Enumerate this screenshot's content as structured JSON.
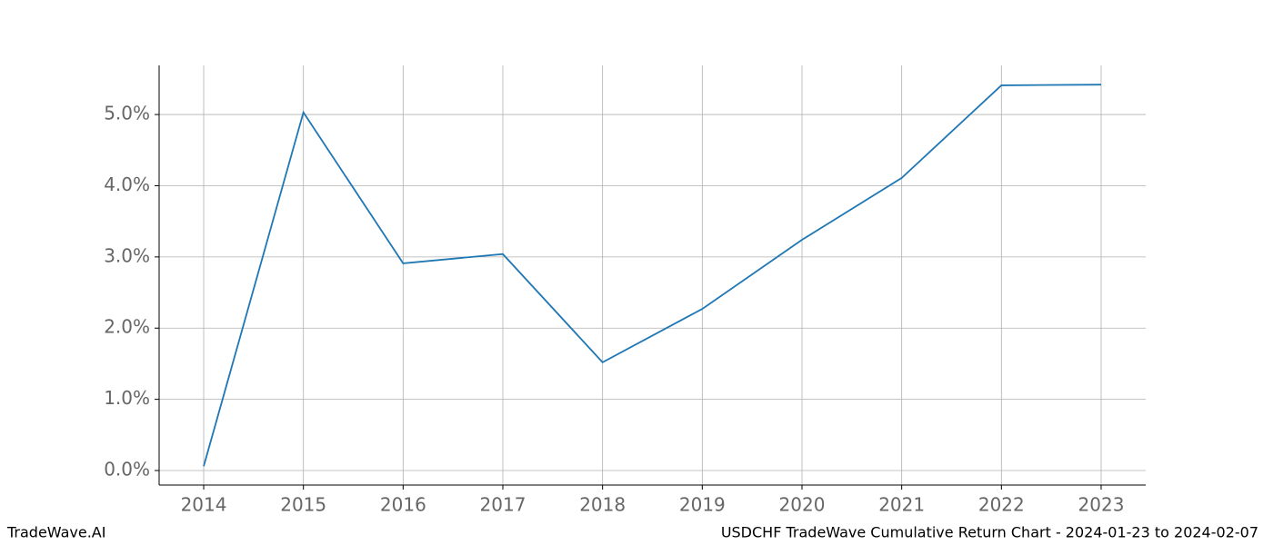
{
  "chart_data": {
    "type": "line",
    "title": "USDCHF TradeWave Cumulative Return Chart - 2024-01-23 to 2024-02-07",
    "watermark": "TradeWave.AI",
    "x": [
      2014,
      2015,
      2016,
      2017,
      2018,
      2019,
      2020,
      2021,
      2022,
      2023
    ],
    "series": [
      {
        "name": "USDCHF",
        "color": "#1f77b4",
        "values": [
          0.06,
          5.03,
          2.91,
          3.04,
          1.52,
          2.27,
          3.24,
          4.11,
          5.41,
          5.42
        ]
      }
    ],
    "xlim": [
      2013.553,
      2023.447
    ],
    "xticks": [
      2014,
      2015,
      2016,
      2017,
      2018,
      2019,
      2020,
      2021,
      2022,
      2023
    ],
    "ylim": [
      -0.204,
      5.69
    ],
    "yticks": [
      {
        "value": 0,
        "label": "0.0%"
      },
      {
        "value": 1,
        "label": "1.0%"
      },
      {
        "value": 2,
        "label": "2.0%"
      },
      {
        "value": 3,
        "label": "3.0%"
      },
      {
        "value": 4,
        "label": "4.0%"
      },
      {
        "value": 5,
        "label": "5.0%"
      }
    ],
    "grid": true
  }
}
